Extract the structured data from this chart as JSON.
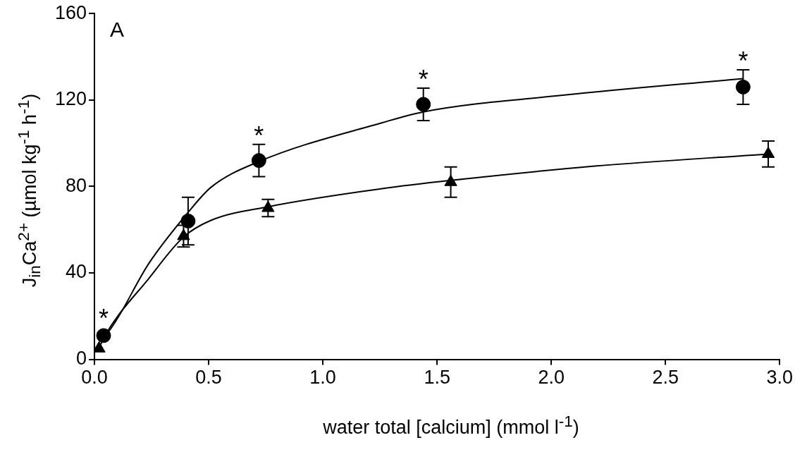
{
  "chart_data": {
    "type": "scatter",
    "xlabel": "water total [calcium] (mmol l$^{-1}$)",
    "ylabel": "J$_{in}$Ca$^{2+}$ (µmol kg$^{-1}$ h$^{-1}$)",
    "xlim": [
      0,
      3
    ],
    "xticks": [
      {
        "value": 0,
        "label": "0.0"
      },
      {
        "value": 0.5,
        "label": "0.5"
      },
      {
        "value": 1,
        "label": "1.0"
      },
      {
        "value": 1.5,
        "label": "1.5"
      },
      {
        "value": 2,
        "label": "2.0"
      },
      {
        "value": 2.5,
        "label": "2.5"
      },
      {
        "value": 3,
        "label": "3.0"
      }
    ],
    "ylim": [
      0,
      160
    ],
    "yticks": [
      0,
      40,
      80,
      120,
      160
    ],
    "grid": false,
    "legend": false,
    "series": [
      {
        "marker": "circle",
        "color": "#000000",
        "x": [
          0.04,
          0.41,
          0.72,
          1.44,
          2.84
        ],
        "values": [
          11,
          64,
          92,
          118,
          126
        ],
        "errors": [
          null,
          11,
          7.5,
          7.5,
          8
        ]
      },
      {
        "marker": "triangle",
        "color": "#000000",
        "x": [
          0.02,
          0.39,
          0.76,
          1.56,
          2.95
        ],
        "values": [
          5,
          57,
          70,
          82,
          95
        ],
        "errors": [
          null,
          5,
          4,
          7,
          6
        ]
      },
      {
        "type": "line",
        "marker": "none",
        "line_style": "solid",
        "color": "#000000",
        "x": [
          0.04,
          0.06,
          0.24,
          0.41,
          0.51,
          0.72,
          1.26,
          1.44,
          2.05,
          2.84
        ],
        "values": [
          11,
          12.6,
          44.7,
          68,
          79.6,
          91.5,
          109.5,
          114.5,
          122.2,
          129.9
        ]
      },
      {
        "type": "line",
        "marker": "none",
        "line_style": "solid",
        "color": "#000000",
        "x": [
          0.02,
          0.04,
          0.24,
          0.39,
          0.51,
          0.76,
          1.26,
          1.56,
          2.19,
          2.95
        ],
        "values": [
          5,
          9.8,
          37.7,
          56.6,
          64.3,
          70.6,
          79,
          82.8,
          89.4,
          95
        ]
      }
    ],
    "annotations": [
      "A",
      {
        "text": "*",
        "x": 0.04,
        "y": 11
      },
      {
        "text": "*",
        "x": 0.72,
        "y": 92
      },
      {
        "text": "*",
        "x": 1.44,
        "y": 118
      },
      {
        "text": "*",
        "x": 2.84,
        "y": 126
      }
    ]
  }
}
